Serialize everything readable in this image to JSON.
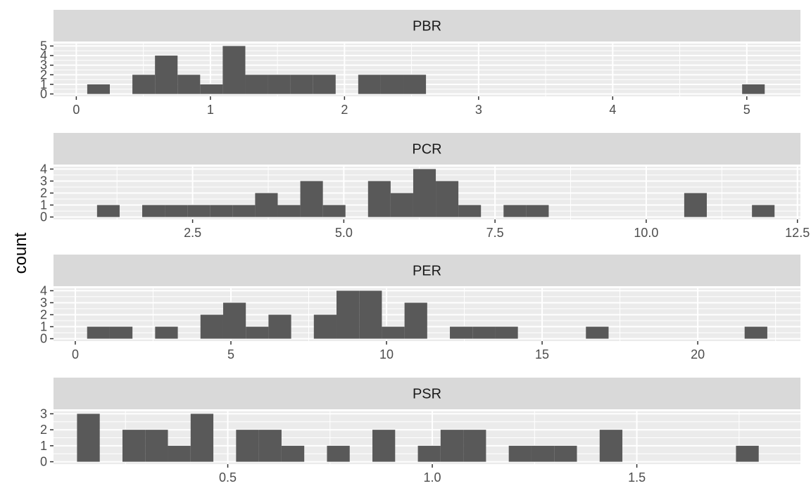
{
  "chart_data": {
    "type": "bar",
    "chart_kind": "faceted-histogram",
    "ylabel": "count",
    "xlabel": "",
    "bar_color": "#595959",
    "panel_background": "#ebebeb",
    "strip_background": "#d9d9d9",
    "grid": true,
    "facets": [
      {
        "label": "PBR",
        "xlim": [
          -0.17,
          5.4
        ],
        "ylim": [
          0,
          5
        ],
        "yticks": [
          0,
          1,
          2,
          3,
          4,
          5
        ],
        "xticks": [
          0,
          1,
          2,
          3,
          4,
          5
        ],
        "xtick_labels": [
          "0",
          "1",
          "2",
          "3",
          "4",
          "5"
        ],
        "bin_start": 0.0816,
        "bin_width": 0.1684,
        "counts": [
          1,
          0,
          2,
          4,
          2,
          1,
          5,
          2,
          2,
          2,
          2,
          0,
          2,
          2,
          2,
          0,
          0,
          0,
          0,
          0,
          0,
          0,
          0,
          0,
          0,
          0,
          0,
          0,
          0,
          1
        ]
      },
      {
        "label": "PCR",
        "xlim": [
          0.2,
          12.55
        ],
        "ylim": [
          0,
          4
        ],
        "yticks": [
          0,
          1,
          2,
          3,
          4
        ],
        "xticks": [
          2.5,
          5.0,
          7.5,
          10.0,
          12.5
        ],
        "xtick_labels": [
          "2.5",
          "5.0",
          "7.5",
          "10.0",
          "12.5"
        ],
        "bin_start": 0.92,
        "bin_width": 0.3734,
        "counts": [
          1,
          0,
          1,
          1,
          1,
          1,
          1,
          2,
          1,
          3,
          1,
          0,
          3,
          2,
          4,
          3,
          1,
          0,
          1,
          1,
          0,
          0,
          0,
          0,
          0,
          0,
          2,
          0,
          0,
          1
        ]
      },
      {
        "label": "PER",
        "xlim": [
          -0.7,
          23.3
        ],
        "ylim": [
          0,
          4
        ],
        "yticks": [
          0,
          1,
          2,
          3,
          4
        ],
        "xticks": [
          0,
          5,
          10,
          15,
          20
        ],
        "xtick_labels": [
          "0",
          "5",
          "10",
          "15",
          "20"
        ],
        "bin_start": 0.38,
        "bin_width": 0.7285,
        "counts": [
          1,
          1,
          0,
          1,
          0,
          2,
          3,
          1,
          2,
          0,
          2,
          4,
          4,
          1,
          3,
          0,
          1,
          1,
          1,
          0,
          0,
          0,
          1,
          0,
          0,
          0,
          0,
          0,
          0,
          1
        ]
      },
      {
        "label": "PSR",
        "xlim": [
          0.074,
          1.9
        ],
        "ylim": [
          0,
          3
        ],
        "yticks": [
          0,
          1,
          2,
          3
        ],
        "xticks": [
          0.5,
          1.0,
          1.5
        ],
        "xtick_labels": [
          "0.5",
          "1.0",
          "1.5"
        ],
        "bin_start": 0.1315,
        "bin_width": 0.05555,
        "counts": [
          3,
          0,
          2,
          2,
          1,
          3,
          0,
          2,
          2,
          1,
          0,
          1,
          0,
          2,
          0,
          1,
          2,
          2,
          0,
          1,
          1,
          1,
          0,
          2,
          0,
          0,
          0,
          0,
          0,
          1
        ]
      }
    ]
  }
}
